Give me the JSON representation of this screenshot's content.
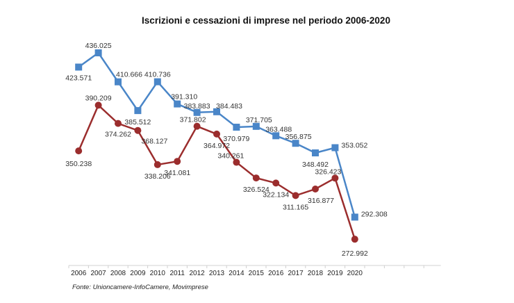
{
  "chart_data": {
    "type": "line",
    "title": "Iscrizioni e cessazioni di imprese nel periodo 2006-2020",
    "source": "Fonte: Unioncamere-InfoCamere, Movimprese",
    "xlabel": "",
    "ylabel": "",
    "categories": [
      "2006",
      "2007",
      "2008",
      "2009",
      "2010",
      "2011",
      "2012",
      "2013",
      "2014",
      "2015",
      "2016",
      "2017",
      "2018",
      "2019",
      "2020"
    ],
    "ylim": [
      250,
      440
    ],
    "grid": false,
    "legend": "none",
    "series": [
      {
        "name": "Iscrizioni",
        "color": "#4A86C8",
        "marker": "square",
        "values": [
          423.571,
          436.025,
          410.666,
          385.512,
          410.736,
          391.31,
          383.883,
          384.483,
          370.979,
          371.705,
          363.488,
          356.875,
          348.492,
          353.052,
          292.308
        ],
        "labels": [
          "423.571",
          "436.025",
          "410.666",
          "385.512",
          "410.736",
          "391.310",
          "383.883",
          "384.483",
          "370.979",
          "371.705",
          "363.488",
          "356.875",
          "348.492",
          "353.052",
          "292.308"
        ]
      },
      {
        "name": "Cessazioni",
        "color": "#9B2D2D",
        "marker": "circle",
        "values": [
          350.238,
          390.209,
          374.262,
          368.127,
          338.206,
          341.081,
          371.802,
          364.972,
          340.261,
          326.524,
          322.134,
          311.165,
          316.877,
          326.423,
          272.992
        ],
        "labels": [
          "350.238",
          "390.209",
          "374.262",
          "368.127",
          "338.206",
          "341.081",
          "371.802",
          "364.972",
          "340.261",
          "326.524",
          "322.134",
          "311.165",
          "316.877",
          "326.423",
          "272.992"
        ]
      }
    ]
  }
}
